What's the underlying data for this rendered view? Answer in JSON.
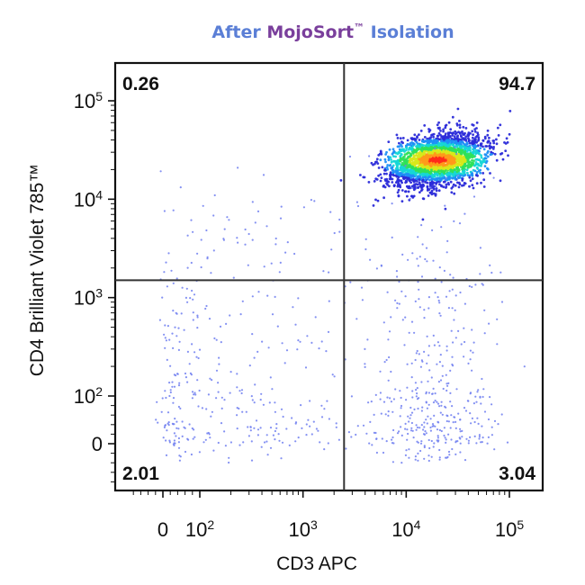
{
  "chart_data": {
    "type": "scatter",
    "title_parts": [
      {
        "text": "After ",
        "color": "#5b7fd6"
      },
      {
        "text": "MojoSort",
        "color": "#7a3f9c"
      },
      {
        "text": "™",
        "color": "#7a3f9c",
        "sup": true
      },
      {
        "text": " Isolation",
        "color": "#5b7fd6"
      }
    ],
    "xlabel": "CD3 APC",
    "ylabel": "CD4 Brilliant Violet 785™",
    "x_scale": "biexponential",
    "y_scale": "biexponential",
    "x_ticks": [
      {
        "value": 0,
        "base": "0",
        "exp": ""
      },
      {
        "value": 100,
        "base": "10",
        "exp": "2"
      },
      {
        "value": 1000,
        "base": "10",
        "exp": "3"
      },
      {
        "value": 10000,
        "base": "10",
        "exp": "4"
      },
      {
        "value": 100000,
        "base": "10",
        "exp": "5"
      }
    ],
    "y_ticks": [
      {
        "value": 0,
        "base": "0",
        "exp": ""
      },
      {
        "value": 100,
        "base": "10",
        "exp": "2"
      },
      {
        "value": 1000,
        "base": "10",
        "exp": "3"
      },
      {
        "value": 10000,
        "base": "10",
        "exp": "4"
      },
      {
        "value": 100000,
        "base": "10",
        "exp": "5"
      }
    ],
    "gate": {
      "x": 2500,
      "y": 1500
    },
    "quadrants": [
      {
        "position": "top-left",
        "percent": "0.26"
      },
      {
        "position": "top-right",
        "percent": "94.7"
      },
      {
        "position": "bottom-left",
        "percent": "2.01"
      },
      {
        "position": "bottom-right",
        "percent": "3.04"
      }
    ],
    "populations": [
      {
        "name": "",
        "quadrant": "top-right",
        "x_center": 20000,
        "y_center": 25000,
        "x_spread_decades": 0.25,
        "y_spread_decades": 0.12,
        "events": 2600,
        "density_colored": true
      },
      {
        "name": "",
        "quadrant": "bottom-right",
        "x_center": 18000,
        "y_center": 200,
        "x_spread_decades": 0.3,
        "y_spread_decades": 0.9,
        "events": 420,
        "density_colored": false
      },
      {
        "name": "",
        "quadrant": "bottom-left",
        "x_center": 300,
        "y_center": 200,
        "x_spread_decades": 0.7,
        "y_spread_decades": 0.8,
        "events": 340,
        "density_colored": false
      },
      {
        "name": "",
        "quadrant": "top-left",
        "x_center": 700,
        "y_center": 6000,
        "x_spread_decades": 0.5,
        "y_spread_decades": 0.3,
        "events": 45,
        "density_colored": false
      }
    ],
    "colors": {
      "sparse_dot": "#6f7ef0",
      "density_scale": [
        "#2b2bd9",
        "#1e8ff5",
        "#16d6d6",
        "#2fe05a",
        "#d8e81b",
        "#ff9a1a",
        "#ff2a1a"
      ],
      "axis": "#111111",
      "gate_line": "#333333"
    },
    "grid": false,
    "legend": "none"
  }
}
